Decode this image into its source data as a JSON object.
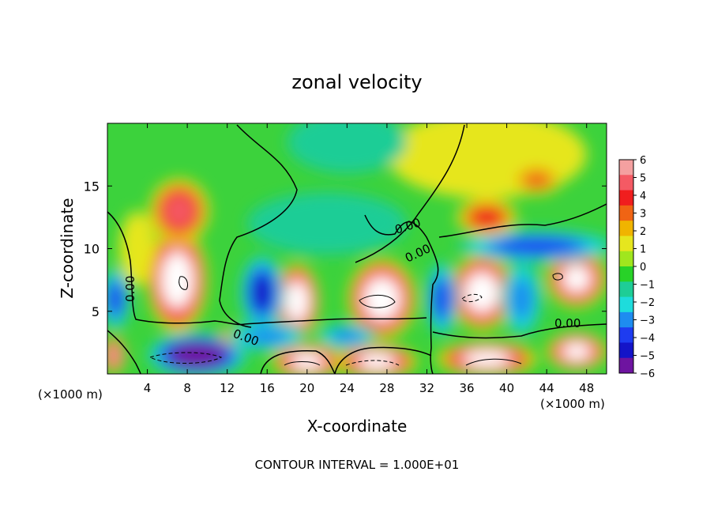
{
  "chart_data": {
    "type": "heatmap",
    "title": "zonal velocity",
    "xlabel": "X-coordinate",
    "ylabel": "Z-coordinate",
    "x_unit_left": "(×1000 m)",
    "x_unit_right": "(×1000 m)",
    "xlim": [
      0,
      50
    ],
    "ylim": [
      0,
      20
    ],
    "x_ticks": [
      4,
      8,
      12,
      16,
      20,
      24,
      28,
      32,
      36,
      40,
      44,
      48
    ],
    "x_tick_labels": [
      "4",
      "8",
      "12",
      "16",
      "20",
      "24",
      "28",
      "32",
      "36",
      "40",
      "44",
      "48"
    ],
    "y_ticks": [
      5,
      10,
      15
    ],
    "y_tick_labels": [
      "5",
      "10",
      "15"
    ],
    "colorbar": {
      "min": -6,
      "max": 6,
      "labels": [
        "6",
        "5",
        "4",
        "3",
        "2",
        "1",
        "0",
        "−1",
        "−2",
        "−3",
        "−4",
        "−5",
        "−6"
      ],
      "colors": [
        "#f4a0a0",
        "#f45a64",
        "#f01e1e",
        "#f06414",
        "#f0b400",
        "#e6e61e",
        "#a0e61e",
        "#28d228",
        "#1ecd96",
        "#1edcdc",
        "#1e8cf0",
        "#1e3cf0",
        "#1414c8",
        "#6e14a0"
      ]
    },
    "contour_labels": [
      "0.00",
      "0.00",
      "0.00",
      "0.00",
      "0.00"
    ],
    "footer": "CONTOUR INTERVAL = 1.000E+01",
    "blobs": [
      {
        "x": 7.0,
        "z": 7.5,
        "rx": 3.0,
        "rz": 4.2,
        "v": 7.5
      },
      {
        "x": 7.2,
        "z": 13.0,
        "rx": 3.0,
        "rz": 2.6,
        "v": 5.0
      },
      {
        "x": 3.0,
        "z": 10.0,
        "rx": 1.8,
        "rz": 3.0,
        "v": 1.0
      },
      {
        "x": 19.0,
        "z": 5.8,
        "rx": 2.2,
        "rz": 3.0,
        "v": 7.5
      },
      {
        "x": 15.5,
        "z": 6.5,
        "rx": 2.2,
        "rz": 3.0,
        "v": -4.5
      },
      {
        "x": 27.5,
        "z": 6.0,
        "rx": 3.4,
        "rz": 3.2,
        "v": 7.5
      },
      {
        "x": 37.5,
        "z": 6.5,
        "rx": 3.2,
        "rz": 3.0,
        "v": 7.5
      },
      {
        "x": 47.0,
        "z": 7.6,
        "rx": 3.0,
        "rz": 2.3,
        "v": 7.0
      },
      {
        "x": 43.0,
        "z": 10.2,
        "rx": 8.0,
        "rz": 1.3,
        "v": -3.8
      },
      {
        "x": 33.5,
        "z": 6.0,
        "rx": 1.6,
        "rz": 3.0,
        "v": -3.5
      },
      {
        "x": 41.5,
        "z": 6.0,
        "rx": 2.0,
        "rz": 3.0,
        "v": -3.0
      },
      {
        "x": 0.8,
        "z": 6.0,
        "rx": 1.5,
        "rz": 2.5,
        "v": -3.5
      },
      {
        "x": 9.0,
        "z": 1.5,
        "rx": 5.0,
        "rz": 1.8,
        "v": -7.0
      },
      {
        "x": 20.0,
        "z": 1.0,
        "rx": 3.5,
        "rz": 1.4,
        "v": 7.0
      },
      {
        "x": 27.0,
        "z": 1.0,
        "rx": 4.0,
        "rz": 1.4,
        "v": 7.0
      },
      {
        "x": 38.0,
        "z": 1.2,
        "rx": 5.0,
        "rz": 1.4,
        "v": 7.0
      },
      {
        "x": 47.0,
        "z": 1.8,
        "rx": 3.0,
        "rz": 1.5,
        "v": 6.5
      },
      {
        "x": 0.6,
        "z": 1.5,
        "rx": 1.2,
        "rz": 1.5,
        "v": 6.0
      },
      {
        "x": 12.5,
        "z": 3.0,
        "rx": 1.2,
        "rz": 0.8,
        "v": 3.5
      },
      {
        "x": 16.0,
        "z": 3.0,
        "rx": 4.0,
        "rz": 1.2,
        "v": -3.0
      },
      {
        "x": 24.0,
        "z": 3.0,
        "rx": 3.0,
        "rz": 1.0,
        "v": -3.0
      },
      {
        "x": 38.0,
        "z": 17.5,
        "rx": 10.0,
        "rz": 3.5,
        "v": 1.2
      },
      {
        "x": 38.0,
        "z": 12.5,
        "rx": 3.0,
        "rz": 1.5,
        "v": 3.5
      },
      {
        "x": 43.0,
        "z": 15.5,
        "rx": 2.5,
        "rz": 1.2,
        "v": 3.0
      },
      {
        "x": 24.0,
        "z": 18.5,
        "rx": 6.0,
        "rz": 2.5,
        "v": -1.3
      },
      {
        "x": 22.0,
        "z": 12.0,
        "rx": 8.0,
        "rz": 2.5,
        "v": -1.2
      }
    ]
  }
}
